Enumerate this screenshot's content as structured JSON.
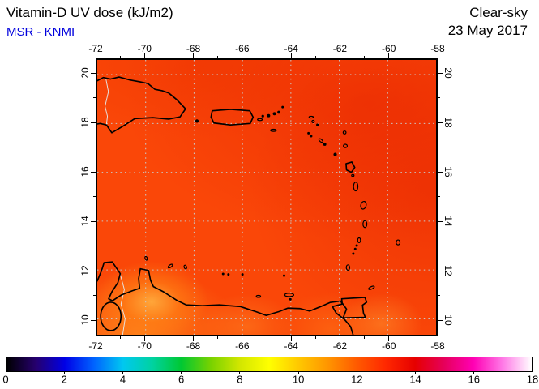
{
  "figure": {
    "title": "Vitamin-D UV dose (kJ/m2)",
    "source": "MSR - KNMI",
    "condition": "Clear-sky",
    "date": "23 May 2017"
  },
  "map": {
    "region": "Caribbean / Antilles",
    "lon_range": [
      -72,
      -58
    ],
    "lat_range": [
      9.35,
      20.6
    ],
    "lon_tick_labels": [
      "-72",
      "-70",
      "-68",
      "-66",
      "-64",
      "-62",
      "-60",
      "-58"
    ],
    "lat_tick_labels": [
      "20",
      "18",
      "16",
      "14",
      "12",
      "10"
    ],
    "grid_shown": true,
    "approx_dose_range_kj_m2": [
      11.5,
      14.5
    ],
    "field_colors": {
      "dominant": "#fa4708",
      "bright_spots": "#ffaa3c",
      "dark_regions": "#e52100"
    }
  },
  "colorbar": {
    "min": 0,
    "max": 18,
    "unit": "kJ/m2",
    "tick_labels": [
      "0",
      "2",
      "4",
      "6",
      "8",
      "10",
      "12",
      "14",
      "16",
      "18"
    ],
    "stops": [
      {
        "value": 0,
        "color": "#000000"
      },
      {
        "value": 1,
        "color": "#26006e"
      },
      {
        "value": 2,
        "color": "#0000e6"
      },
      {
        "value": 3,
        "color": "#0064ff"
      },
      {
        "value": 4,
        "color": "#00c8f0"
      },
      {
        "value": 5,
        "color": "#00d2a0"
      },
      {
        "value": 6,
        "color": "#00c832"
      },
      {
        "value": 7,
        "color": "#78d200"
      },
      {
        "value": 8,
        "color": "#d2e600"
      },
      {
        "value": 9,
        "color": "#ffff00"
      },
      {
        "value": 10,
        "color": "#ffc800"
      },
      {
        "value": 11,
        "color": "#ff9600"
      },
      {
        "value": 12,
        "color": "#ff5a00"
      },
      {
        "value": 13,
        "color": "#ff2800"
      },
      {
        "value": 14,
        "color": "#e60000"
      },
      {
        "value": 15,
        "color": "#e6005a"
      },
      {
        "value": 16,
        "color": "#ff00b4"
      },
      {
        "value": 17,
        "color": "#ff78e6"
      },
      {
        "value": 18,
        "color": "#ffffff"
      }
    ]
  },
  "colors": {
    "title_text": "#000000",
    "source_text": "#0000dd",
    "coastline": "#000000",
    "grid_line": "#c8c8c8",
    "country_border": "#e6e6e6"
  }
}
